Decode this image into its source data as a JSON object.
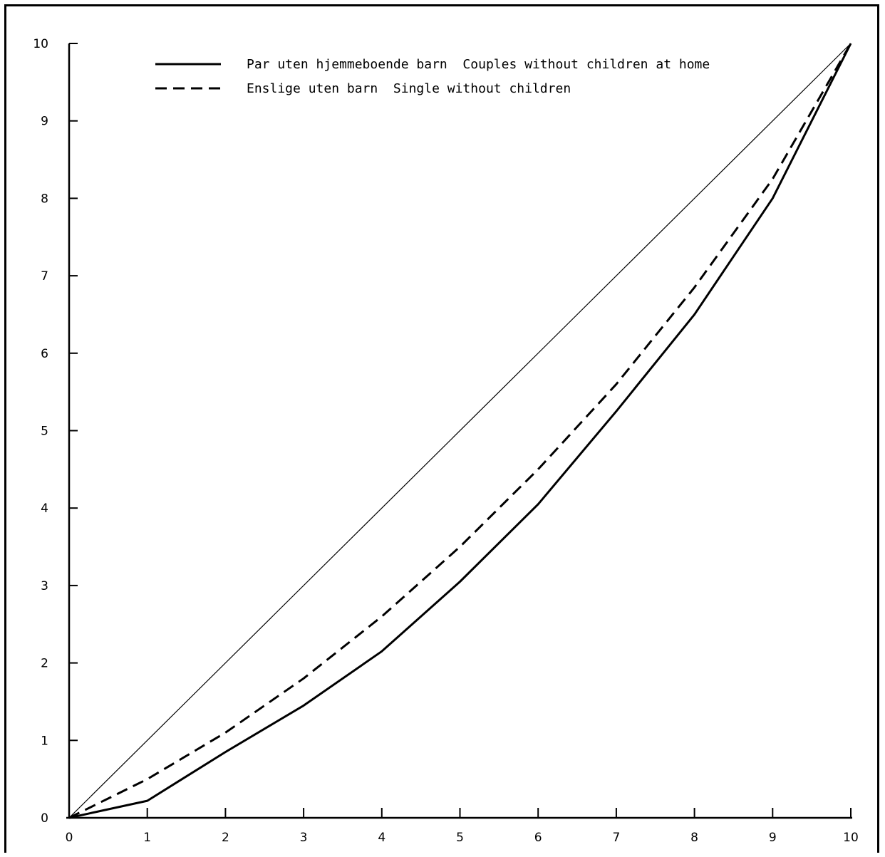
{
  "chart_data": {
    "type": "line",
    "title": "",
    "xlabel": "",
    "ylabel": "",
    "xlim": [
      0,
      10
    ],
    "ylim": [
      0,
      10
    ],
    "x_ticks": [
      "0",
      "1",
      "2",
      "3",
      "4",
      "5",
      "6",
      "7",
      "8",
      "9",
      "10"
    ],
    "y_ticks": [
      "0",
      "1",
      "2",
      "3",
      "4",
      "5",
      "6",
      "7",
      "8",
      "9",
      "10"
    ],
    "grid": false,
    "legend_position": "top",
    "equality_line": {
      "x": [
        0,
        10
      ],
      "y": [
        0,
        10
      ]
    },
    "series": [
      {
        "name": "Par uten hjemmeboende barn  Couples without children at home",
        "style": "solid",
        "color": "#000000",
        "x": [
          0,
          1,
          2,
          3,
          4,
          5,
          6,
          7,
          8,
          9,
          10
        ],
        "y": [
          0,
          0.22,
          0.85,
          1.45,
          2.15,
          3.05,
          4.05,
          5.25,
          6.5,
          8.0,
          10
        ]
      },
      {
        "name": "Enslige uten barn  Single without children",
        "style": "dashed",
        "color": "#000000",
        "x": [
          0,
          1,
          2,
          3,
          4,
          5,
          6,
          7,
          8,
          9,
          10
        ],
        "y": [
          0,
          0.5,
          1.1,
          1.8,
          2.6,
          3.5,
          4.5,
          5.6,
          6.85,
          8.25,
          10
        ]
      }
    ]
  }
}
